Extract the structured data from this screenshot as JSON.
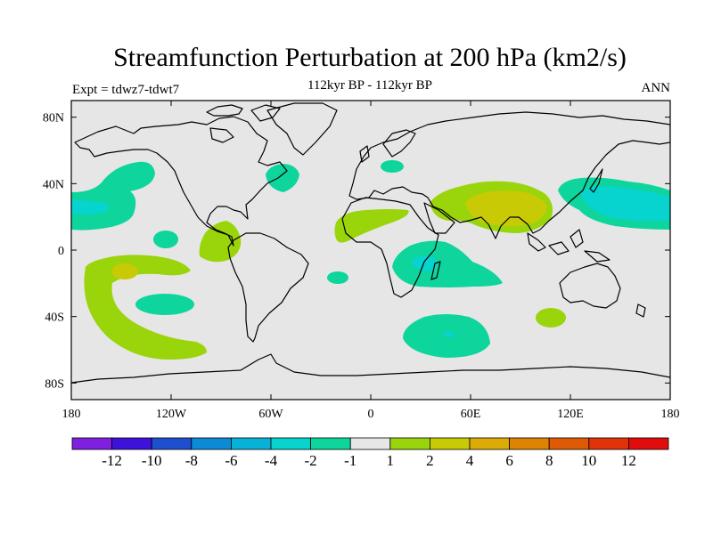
{
  "title": "Streamfunction Perturbation at 200 hPa (km2/s)",
  "subtitle": "112kyr BP - 112kyr BP",
  "left_label": "Expt = tdwz7-tdwt7",
  "right_label": "ANN",
  "map": {
    "ocean_color": "#e6e6e6",
    "x_ticks": [
      "180",
      "120W",
      "60W",
      "0",
      "60E",
      "120E",
      "180"
    ],
    "y_ticks": [
      "80N",
      "40N",
      "0",
      "40S",
      "80S"
    ]
  },
  "colorbar": {
    "colors": [
      "#7f1fdf",
      "#3e12d8",
      "#1d4fcf",
      "#0c8ad6",
      "#08b1d8",
      "#07d3cf",
      "#0dd59c",
      "#e6e6e6",
      "#9ad40a",
      "#c9ca06",
      "#ddab05",
      "#de8303",
      "#df5a05",
      "#e2320a",
      "#e10d0d"
    ],
    "labels": [
      "-12",
      "-10",
      "-8",
      "-6",
      "-4",
      "-2",
      "-1",
      "1",
      "2",
      "4",
      "6",
      "8",
      "10",
      "12"
    ]
  },
  "chart_data": {
    "type": "map",
    "variable": "Streamfunction Perturbation at 200 hPa",
    "units": "km2/s",
    "contour_levels": [
      -12,
      -10,
      -8,
      -6,
      -4,
      -2,
      -1,
      1,
      2,
      4,
      6,
      8,
      10,
      12
    ],
    "x_range": [
      -180,
      180
    ],
    "y_range": [
      -90,
      90
    ],
    "notable_features": [
      {
        "region": "South Asia / Tibet",
        "range": "2 to 4"
      },
      {
        "region": "NW Pacific / Japan",
        "range": "-2 to -4"
      },
      {
        "region": "South Pacific",
        "range": "1 to 2"
      },
      {
        "region": "Southern Indian Ocean",
        "range": "-1 to -2"
      }
    ]
  }
}
